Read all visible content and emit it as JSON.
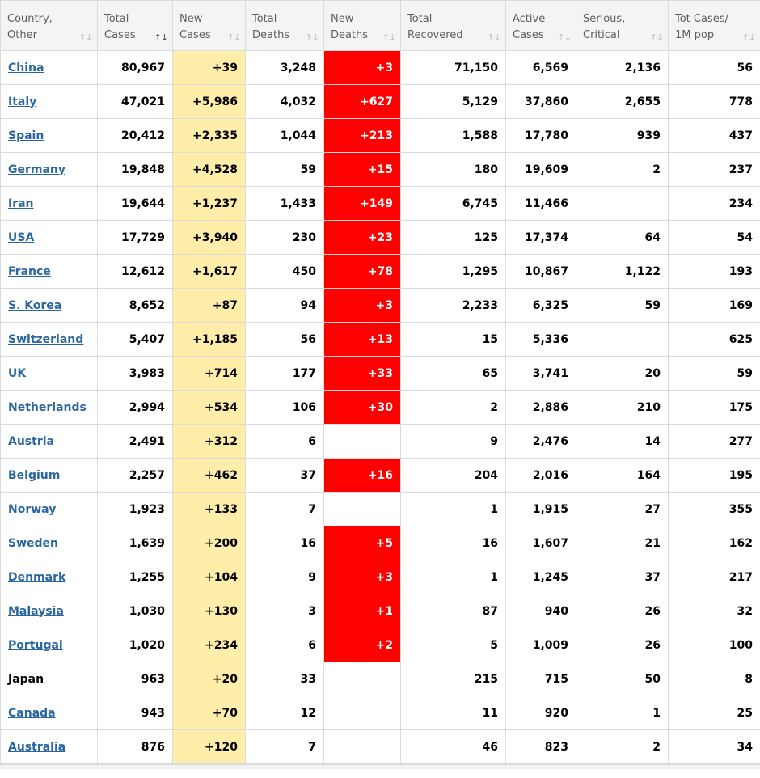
{
  "icons": {
    "sort": "↑↓"
  },
  "colors": {
    "header_bg": "#f4f4f4",
    "new_cases_bg": "#FFEEAA",
    "new_deaths_bg": "#FF0000",
    "new_deaths_text": "#ffffff",
    "link_color": "#2a66a2",
    "header_text": "#5d5d5d",
    "border": "#dbdbdb"
  },
  "table": {
    "columns": [
      {
        "id": "country",
        "label": "Country,\nOther",
        "sorted": false
      },
      {
        "id": "total_cases",
        "label": "Total\nCases",
        "sorted": true
      },
      {
        "id": "new_cases",
        "label": "New\nCases",
        "sorted": false
      },
      {
        "id": "total_deaths",
        "label": "Total\nDeaths",
        "sorted": false
      },
      {
        "id": "new_deaths",
        "label": "New\nDeaths",
        "sorted": false
      },
      {
        "id": "total_recovered",
        "label": "Total\nRecovered",
        "sorted": false
      },
      {
        "id": "active_cases",
        "label": "Active\nCases",
        "sorted": false
      },
      {
        "id": "serious_critical",
        "label": "Serious,\nCritical",
        "sorted": false
      },
      {
        "id": "cases_per_1m",
        "label": "Tot Cases/\n1M pop",
        "sorted": false
      }
    ],
    "rows": [
      {
        "country": "China",
        "is_link": true,
        "total_cases": "80,967",
        "new_cases": "+39",
        "total_deaths": "3,248",
        "new_deaths": "+3",
        "total_recovered": "71,150",
        "active_cases": "6,569",
        "serious_critical": "2,136",
        "cases_per_1m": "56"
      },
      {
        "country": "Italy",
        "is_link": true,
        "total_cases": "47,021",
        "new_cases": "+5,986",
        "total_deaths": "4,032",
        "new_deaths": "+627",
        "total_recovered": "5,129",
        "active_cases": "37,860",
        "serious_critical": "2,655",
        "cases_per_1m": "778"
      },
      {
        "country": "Spain",
        "is_link": true,
        "total_cases": "20,412",
        "new_cases": "+2,335",
        "total_deaths": "1,044",
        "new_deaths": "+213",
        "total_recovered": "1,588",
        "active_cases": "17,780",
        "serious_critical": "939",
        "cases_per_1m": "437"
      },
      {
        "country": "Germany",
        "is_link": true,
        "total_cases": "19,848",
        "new_cases": "+4,528",
        "total_deaths": "59",
        "new_deaths": "+15",
        "total_recovered": "180",
        "active_cases": "19,609",
        "serious_critical": "2",
        "cases_per_1m": "237"
      },
      {
        "country": "Iran",
        "is_link": true,
        "total_cases": "19,644",
        "new_cases": "+1,237",
        "total_deaths": "1,433",
        "new_deaths": "+149",
        "total_recovered": "6,745",
        "active_cases": "11,466",
        "serious_critical": "",
        "cases_per_1m": "234"
      },
      {
        "country": "USA",
        "is_link": true,
        "total_cases": "17,729",
        "new_cases": "+3,940",
        "total_deaths": "230",
        "new_deaths": "+23",
        "total_recovered": "125",
        "active_cases": "17,374",
        "serious_critical": "64",
        "cases_per_1m": "54"
      },
      {
        "country": "France",
        "is_link": true,
        "total_cases": "12,612",
        "new_cases": "+1,617",
        "total_deaths": "450",
        "new_deaths": "+78",
        "total_recovered": "1,295",
        "active_cases": "10,867",
        "serious_critical": "1,122",
        "cases_per_1m": "193"
      },
      {
        "country": "S. Korea",
        "is_link": true,
        "total_cases": "8,652",
        "new_cases": "+87",
        "total_deaths": "94",
        "new_deaths": "+3",
        "total_recovered": "2,233",
        "active_cases": "6,325",
        "serious_critical": "59",
        "cases_per_1m": "169"
      },
      {
        "country": "Switzerland",
        "is_link": true,
        "total_cases": "5,407",
        "new_cases": "+1,185",
        "total_deaths": "56",
        "new_deaths": "+13",
        "total_recovered": "15",
        "active_cases": "5,336",
        "serious_critical": "",
        "cases_per_1m": "625"
      },
      {
        "country": "UK",
        "is_link": true,
        "total_cases": "3,983",
        "new_cases": "+714",
        "total_deaths": "177",
        "new_deaths": "+33",
        "total_recovered": "65",
        "active_cases": "3,741",
        "serious_critical": "20",
        "cases_per_1m": "59"
      },
      {
        "country": "Netherlands",
        "is_link": true,
        "total_cases": "2,994",
        "new_cases": "+534",
        "total_deaths": "106",
        "new_deaths": "+30",
        "total_recovered": "2",
        "active_cases": "2,886",
        "serious_critical": "210",
        "cases_per_1m": "175"
      },
      {
        "country": "Austria",
        "is_link": true,
        "total_cases": "2,491",
        "new_cases": "+312",
        "total_deaths": "6",
        "new_deaths": "",
        "total_recovered": "9",
        "active_cases": "2,476",
        "serious_critical": "14",
        "cases_per_1m": "277"
      },
      {
        "country": "Belgium",
        "is_link": true,
        "total_cases": "2,257",
        "new_cases": "+462",
        "total_deaths": "37",
        "new_deaths": "+16",
        "total_recovered": "204",
        "active_cases": "2,016",
        "serious_critical": "164",
        "cases_per_1m": "195"
      },
      {
        "country": "Norway",
        "is_link": true,
        "total_cases": "1,923",
        "new_cases": "+133",
        "total_deaths": "7",
        "new_deaths": "",
        "total_recovered": "1",
        "active_cases": "1,915",
        "serious_critical": "27",
        "cases_per_1m": "355"
      },
      {
        "country": "Sweden",
        "is_link": true,
        "total_cases": "1,639",
        "new_cases": "+200",
        "total_deaths": "16",
        "new_deaths": "+5",
        "total_recovered": "16",
        "active_cases": "1,607",
        "serious_critical": "21",
        "cases_per_1m": "162"
      },
      {
        "country": "Denmark",
        "is_link": true,
        "total_cases": "1,255",
        "new_cases": "+104",
        "total_deaths": "9",
        "new_deaths": "+3",
        "total_recovered": "1",
        "active_cases": "1,245",
        "serious_critical": "37",
        "cases_per_1m": "217"
      },
      {
        "country": "Malaysia",
        "is_link": true,
        "total_cases": "1,030",
        "new_cases": "+130",
        "total_deaths": "3",
        "new_deaths": "+1",
        "total_recovered": "87",
        "active_cases": "940",
        "serious_critical": "26",
        "cases_per_1m": "32"
      },
      {
        "country": "Portugal",
        "is_link": true,
        "total_cases": "1,020",
        "new_cases": "+234",
        "total_deaths": "6",
        "new_deaths": "+2",
        "total_recovered": "5",
        "active_cases": "1,009",
        "serious_critical": "26",
        "cases_per_1m": "100"
      },
      {
        "country": "Japan",
        "is_link": false,
        "total_cases": "963",
        "new_cases": "+20",
        "total_deaths": "33",
        "new_deaths": "",
        "total_recovered": "215",
        "active_cases": "715",
        "serious_critical": "50",
        "cases_per_1m": "8"
      },
      {
        "country": "Canada",
        "is_link": true,
        "total_cases": "943",
        "new_cases": "+70",
        "total_deaths": "12",
        "new_deaths": "",
        "total_recovered": "11",
        "active_cases": "920",
        "serious_critical": "1",
        "cases_per_1m": "25"
      },
      {
        "country": "Australia",
        "is_link": true,
        "total_cases": "876",
        "new_cases": "+120",
        "total_deaths": "7",
        "new_deaths": "",
        "total_recovered": "46",
        "active_cases": "823",
        "serious_critical": "2",
        "cases_per_1m": "34"
      }
    ]
  }
}
